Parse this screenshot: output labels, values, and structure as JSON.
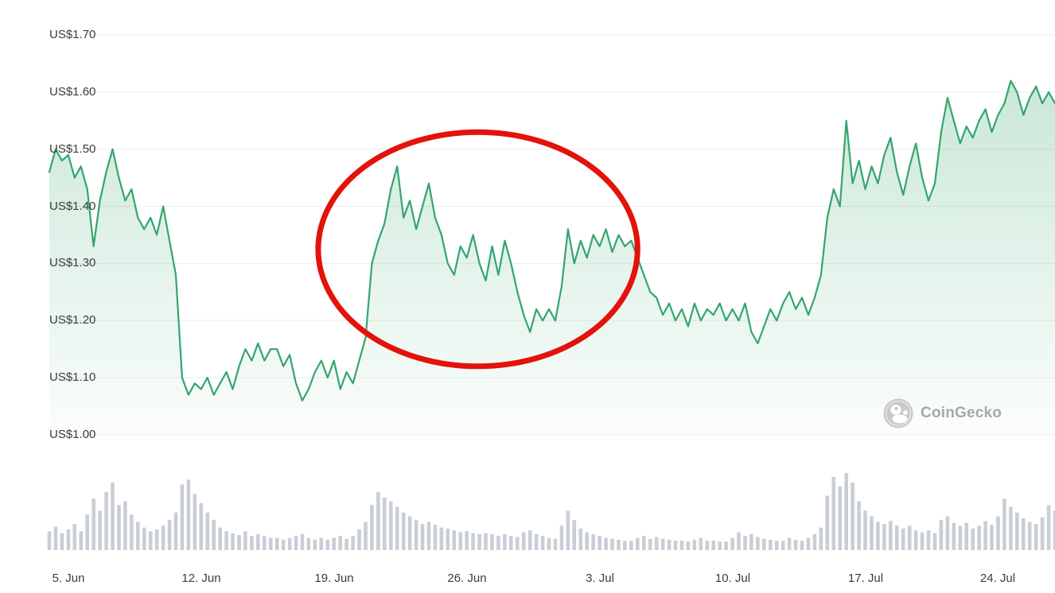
{
  "chart_data": {
    "type": "line",
    "title": "",
    "xlabel": "",
    "ylabel": "",
    "currency_prefix": "US$",
    "ylim": [
      1.0,
      1.7
    ],
    "grid": "horizontal",
    "legend": "none",
    "y_ticks": [
      {
        "label": "US$1.70",
        "value": 1.7
      },
      {
        "label": "US$1.60",
        "value": 1.6
      },
      {
        "label": "US$1.50",
        "value": 1.5
      },
      {
        "label": "US$1.40",
        "value": 1.4
      },
      {
        "label": "US$1.30",
        "value": 1.3
      },
      {
        "label": "US$1.20",
        "value": 1.2
      },
      {
        "label": "US$1.10",
        "value": 1.1
      },
      {
        "label": "US$1.00",
        "value": 1.0
      }
    ],
    "x_ticks": [
      {
        "label": "5. Jun",
        "index": 3
      },
      {
        "label": "12. Jun",
        "index": 24
      },
      {
        "label": "19. Jun",
        "index": 45
      },
      {
        "label": "26. Jun",
        "index": 66
      },
      {
        "label": "3. Jul",
        "index": 87
      },
      {
        "label": "10. Jul",
        "index": 108
      },
      {
        "label": "17. Jul",
        "index": 129
      },
      {
        "label": "24. Jul",
        "index": 150
      }
    ],
    "series": [
      {
        "name": "price-usd",
        "values": [
          1.46,
          1.5,
          1.48,
          1.49,
          1.45,
          1.47,
          1.43,
          1.33,
          1.41,
          1.46,
          1.5,
          1.45,
          1.41,
          1.43,
          1.38,
          1.36,
          1.38,
          1.35,
          1.4,
          1.34,
          1.28,
          1.1,
          1.07,
          1.09,
          1.08,
          1.1,
          1.07,
          1.09,
          1.11,
          1.08,
          1.12,
          1.15,
          1.13,
          1.16,
          1.13,
          1.15,
          1.15,
          1.12,
          1.14,
          1.09,
          1.06,
          1.08,
          1.11,
          1.13,
          1.1,
          1.13,
          1.08,
          1.11,
          1.09,
          1.13,
          1.17,
          1.3,
          1.34,
          1.37,
          1.43,
          1.47,
          1.38,
          1.41,
          1.36,
          1.4,
          1.44,
          1.38,
          1.35,
          1.3,
          1.28,
          1.33,
          1.31,
          1.35,
          1.3,
          1.27,
          1.33,
          1.28,
          1.34,
          1.3,
          1.25,
          1.21,
          1.18,
          1.22,
          1.2,
          1.22,
          1.2,
          1.26,
          1.36,
          1.3,
          1.34,
          1.31,
          1.35,
          1.33,
          1.36,
          1.32,
          1.35,
          1.33,
          1.34,
          1.31,
          1.28,
          1.25,
          1.24,
          1.21,
          1.23,
          1.2,
          1.22,
          1.19,
          1.23,
          1.2,
          1.22,
          1.21,
          1.23,
          1.2,
          1.22,
          1.2,
          1.23,
          1.18,
          1.16,
          1.19,
          1.22,
          1.2,
          1.23,
          1.25,
          1.22,
          1.24,
          1.21,
          1.24,
          1.28,
          1.38,
          1.43,
          1.4,
          1.55,
          1.44,
          1.48,
          1.43,
          1.47,
          1.44,
          1.49,
          1.52,
          1.46,
          1.42,
          1.47,
          1.51,
          1.45,
          1.41,
          1.44,
          1.53,
          1.59,
          1.55,
          1.51,
          1.54,
          1.52,
          1.55,
          1.57,
          1.53,
          1.56,
          1.58,
          1.62,
          1.6,
          1.56,
          1.59,
          1.61,
          1.58,
          1.6,
          1.58
        ]
      }
    ],
    "volume": {
      "name": "volume",
      "range": [
        0,
        100
      ],
      "values": [
        20,
        25,
        18,
        22,
        28,
        20,
        38,
        55,
        42,
        62,
        72,
        48,
        52,
        38,
        30,
        24,
        20,
        22,
        26,
        32,
        40,
        70,
        75,
        60,
        50,
        40,
        32,
        24,
        20,
        18,
        16,
        20,
        15,
        17,
        15,
        13,
        13,
        11,
        13,
        15,
        17,
        13,
        11,
        13,
        11,
        13,
        15,
        12,
        15,
        22,
        30,
        48,
        62,
        56,
        52,
        46,
        40,
        36,
        32,
        28,
        30,
        27,
        24,
        23,
        21,
        19,
        20,
        18,
        17,
        18,
        17,
        15,
        17,
        15,
        14,
        19,
        21,
        17,
        15,
        13,
        12,
        26,
        42,
        32,
        23,
        19,
        17,
        15,
        13,
        12,
        11,
        10,
        10,
        13,
        15,
        12,
        14,
        12,
        11,
        10,
        10,
        9,
        11,
        13,
        10,
        10,
        9,
        9,
        13,
        19,
        15,
        17,
        14,
        12,
        11,
        10,
        10,
        13,
        11,
        10,
        13,
        17,
        24,
        58,
        78,
        68,
        82,
        72,
        52,
        42,
        36,
        30,
        28,
        31,
        26,
        23,
        26,
        21,
        19,
        21,
        18,
        32,
        36,
        29,
        26,
        29,
        23,
        26,
        31,
        27,
        36,
        55,
        46,
        40,
        34,
        30,
        28,
        35,
        48,
        42
      ]
    },
    "annotation": {
      "type": "ellipse",
      "from_index": 42.5,
      "to_index": 93,
      "from_price": 1.12,
      "to_price": 1.53,
      "stroke_width": 7
    },
    "colors": {
      "line": "#34a56d",
      "grid": "#ededed",
      "volume_bar": "#c9ced6",
      "axis_text": "#3c3c3c",
      "annotation": "#e3120b",
      "watermark_text": "#a8a8a8",
      "logo_gray": "#c9c9c9"
    }
  },
  "watermark": {
    "label": "CoinGecko"
  }
}
